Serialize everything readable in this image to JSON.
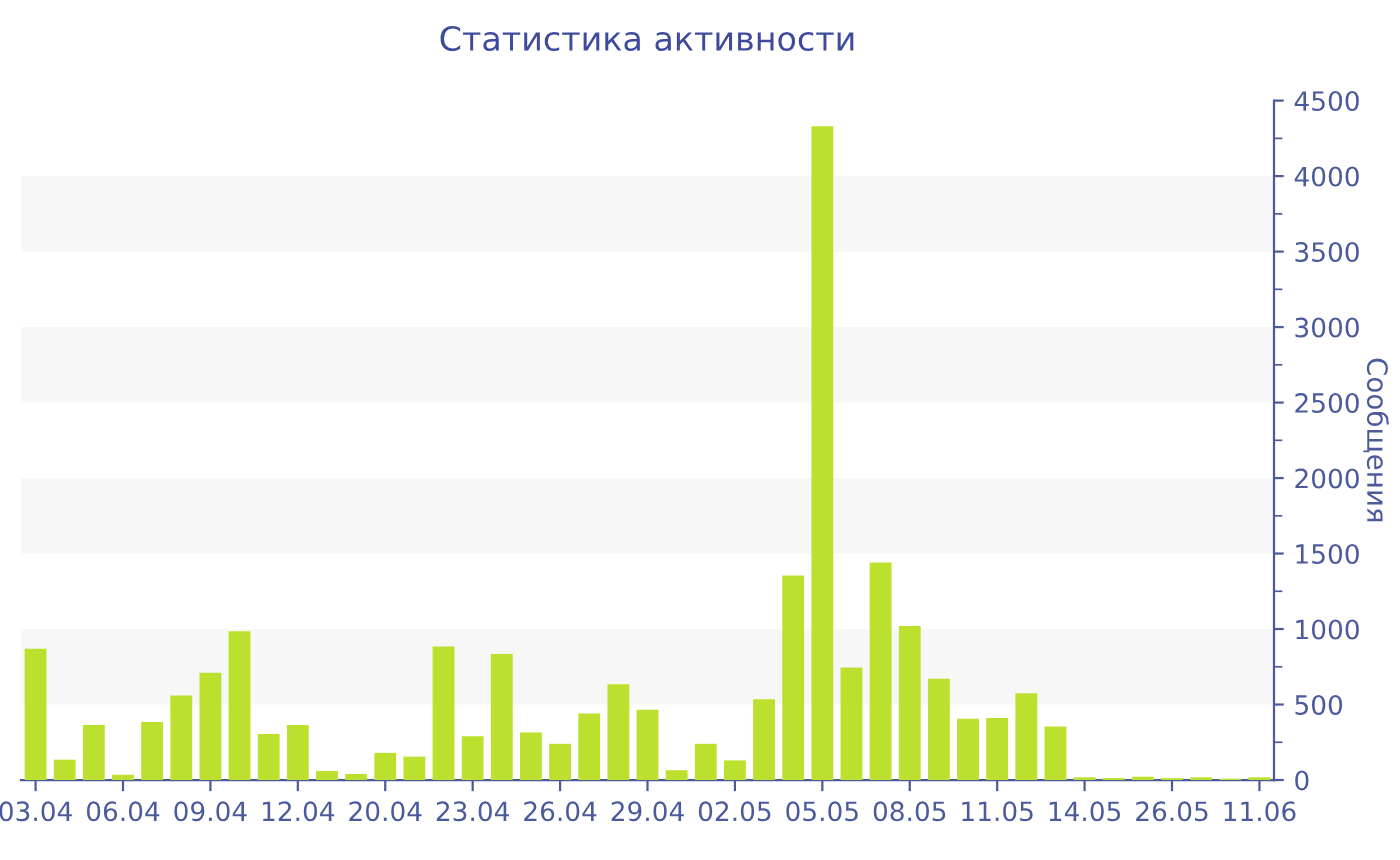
{
  "chart_data": {
    "type": "bar",
    "title": "Статистика активности",
    "ylabel": "Сообщения",
    "categories": [
      "03.04",
      null,
      null,
      "06.04",
      null,
      null,
      "09.04",
      null,
      null,
      "12.04",
      null,
      null,
      "20.04",
      null,
      null,
      "23.04",
      null,
      null,
      "26.04",
      null,
      null,
      "29.04",
      null,
      null,
      "02.05",
      null,
      null,
      "05.05",
      null,
      null,
      "08.05",
      null,
      null,
      "11.05",
      null,
      null,
      "14.05",
      null,
      null,
      "26.05",
      null,
      null,
      "11.06"
    ],
    "values": [
      870,
      135,
      365,
      35,
      385,
      560,
      710,
      985,
      305,
      365,
      60,
      40,
      180,
      155,
      885,
      290,
      835,
      315,
      240,
      440,
      635,
      465,
      65,
      240,
      130,
      535,
      1355,
      4330,
      745,
      1440,
      1020,
      670,
      405,
      410,
      575,
      355,
      18,
      13,
      22,
      13,
      18,
      9,
      18
    ],
    "color": "#bce02e",
    "ylim": [
      0,
      4500
    ],
    "yticks": [
      0,
      500,
      1000,
      1500,
      2000,
      2500,
      3000,
      3500,
      4000,
      4500
    ],
    "bands": [
      {
        "axis": "y",
        "from": 500,
        "to": 1000,
        "color": "#f7f7f7"
      },
      {
        "axis": "y",
        "from": 1500,
        "to": 2000,
        "color": "#f7f7f7"
      },
      {
        "axis": "y",
        "from": 2500,
        "to": 3000,
        "color": "#f7f7f7"
      },
      {
        "axis": "y",
        "from": 3500,
        "to": 4000,
        "color": "#f7f7f7"
      }
    ],
    "grid": false,
    "legend": false
  }
}
